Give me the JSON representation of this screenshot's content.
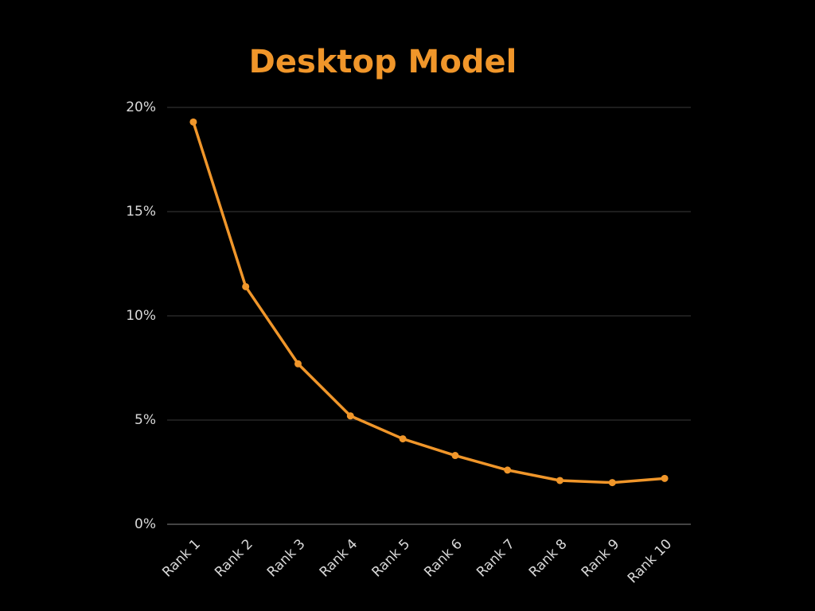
{
  "chart_data": {
    "type": "line",
    "title": "Desktop Model",
    "categories": [
      "Rank 1",
      "Rank 2",
      "Rank 3",
      "Rank 4",
      "Rank 5",
      "Rank 6",
      "Rank 7",
      "Rank 8",
      "Rank 9",
      "Rank 10"
    ],
    "values": [
      19.3,
      11.4,
      7.7,
      5.2,
      4.1,
      3.3,
      2.6,
      2.1,
      2.0,
      2.2
    ],
    "color": "#f0962a",
    "ylim": [
      0,
      20
    ],
    "yticks": [
      {
        "value": 0,
        "label": "0%"
      },
      {
        "value": 5,
        "label": "5%"
      },
      {
        "value": 10,
        "label": "10%"
      },
      {
        "value": 15,
        "label": "15%"
      },
      {
        "value": 20,
        "label": "20%"
      }
    ],
    "grid": true
  }
}
